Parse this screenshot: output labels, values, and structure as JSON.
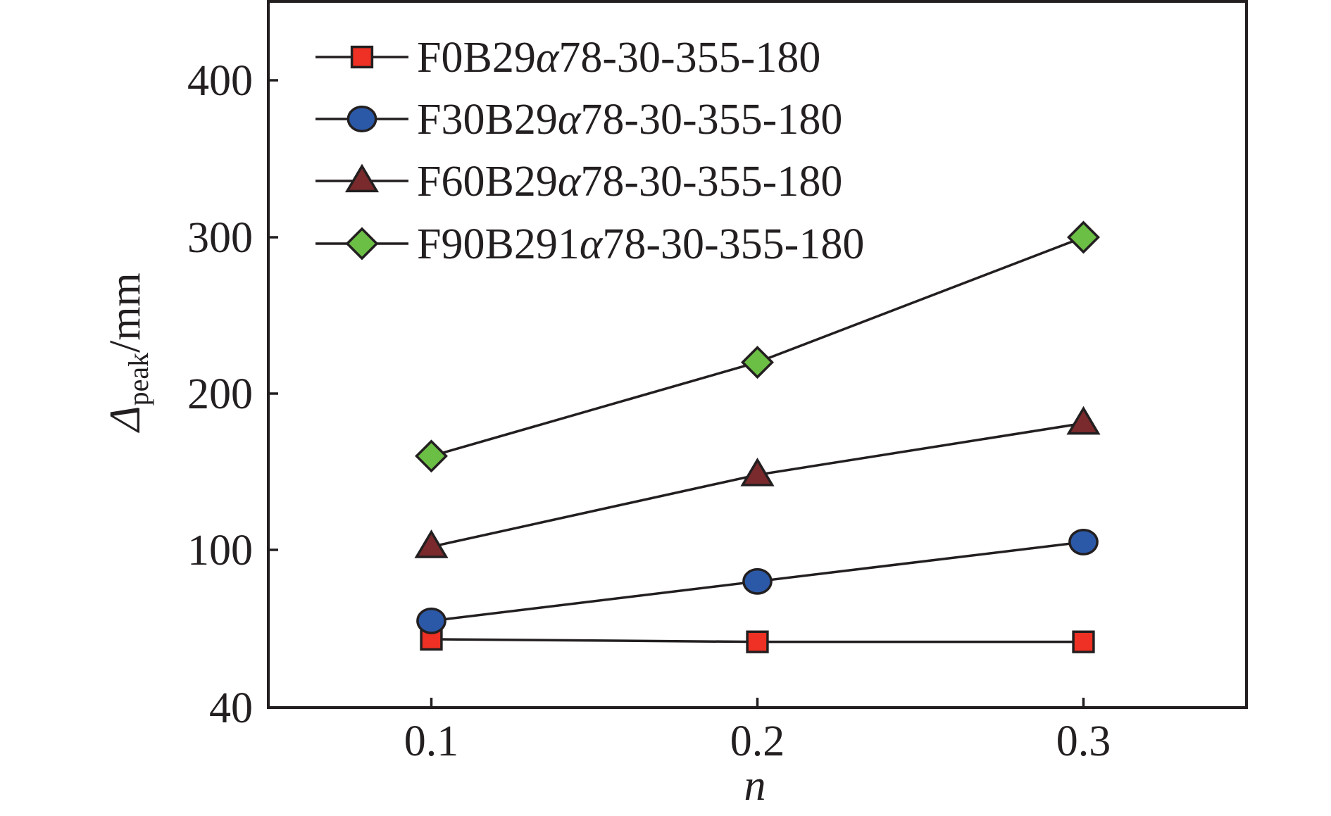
{
  "chart_data": {
    "type": "line",
    "xlabel": "n",
    "ylabel": {
      "symbol": "Δ",
      "subscript": "peak",
      "unit": "/mm"
    },
    "x": [
      0.1,
      0.2,
      0.3
    ],
    "x_ticks": [
      "0.1",
      "0.2",
      "0.3"
    ],
    "xlim": [
      0.05,
      0.35
    ],
    "ylim": [
      40,
      450
    ],
    "y_ticks": [
      "40",
      "100",
      "200",
      "300",
      "400"
    ],
    "y_tick_values": [
      40,
      100,
      200,
      300,
      400
    ],
    "legend_position": "top-left",
    "series": [
      {
        "name": "F0B29α78-30-355-180",
        "marker": "square",
        "color": "#ee3124",
        "values": [
          66,
          65,
          65
        ]
      },
      {
        "name": "F30B29α78-30-355-180",
        "marker": "circle",
        "color": "#2b59a8",
        "values": [
          73,
          88,
          105
        ]
      },
      {
        "name": "F60B29α78-30-355-180",
        "marker": "triangle",
        "color": "#7a2a2c",
        "values": [
          102,
          148,
          181
        ]
      },
      {
        "name": "F90B291α78-30-355-180",
        "marker": "diamond",
        "color": "#6cbf45",
        "values": [
          160,
          220,
          300
        ]
      }
    ]
  }
}
